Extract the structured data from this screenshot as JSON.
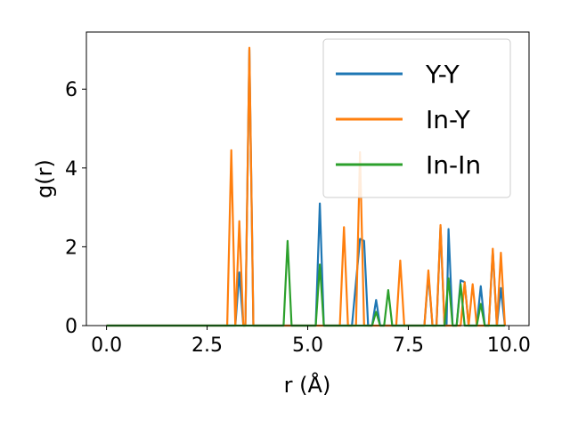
{
  "chart_data": {
    "type": "line",
    "title": "",
    "xlabel": "r (Å)",
    "ylabel": "g(r)",
    "xlim": [
      -0.5,
      10.5
    ],
    "ylim": [
      0,
      7.45
    ],
    "xticks": [
      0.0,
      2.5,
      5.0,
      7.5,
      10.0
    ],
    "xtick_labels": [
      "0.0",
      "2.5",
      "5.0",
      "7.5",
      "10.0"
    ],
    "yticks": [
      0,
      2,
      4,
      6
    ],
    "ytick_labels": [
      "0",
      "2",
      "4",
      "6"
    ],
    "grid": false,
    "legend_position": "top-right",
    "series": [
      {
        "name": "Y-Y",
        "color": "#1f77b4",
        "points": [
          [
            0,
            0
          ],
          [
            3.1,
            0
          ],
          [
            3.2,
            0
          ],
          [
            3.3,
            1.35
          ],
          [
            3.4,
            0
          ],
          [
            3.45,
            0
          ],
          [
            3.55,
            7.0
          ],
          [
            3.65,
            0
          ],
          [
            5.2,
            0
          ],
          [
            5.3,
            3.1
          ],
          [
            5.4,
            0
          ],
          [
            6.1,
            0
          ],
          [
            6.3,
            2.2
          ],
          [
            6.4,
            2.15
          ],
          [
            6.5,
            0
          ],
          [
            6.6,
            0
          ],
          [
            6.7,
            0.65
          ],
          [
            6.8,
            0
          ],
          [
            7.9,
            0
          ],
          [
            8.0,
            1.3
          ],
          [
            8.1,
            0
          ],
          [
            8.2,
            0
          ],
          [
            8.3,
            2.5
          ],
          [
            8.4,
            0
          ],
          [
            8.45,
            0
          ],
          [
            8.5,
            2.45
          ],
          [
            8.6,
            0
          ],
          [
            8.7,
            0
          ],
          [
            8.8,
            1.15
          ],
          [
            8.9,
            1.1
          ],
          [
            9.0,
            0
          ],
          [
            9.2,
            0
          ],
          [
            9.3,
            1.0
          ],
          [
            9.4,
            0
          ],
          [
            9.5,
            0
          ],
          [
            9.6,
            1.9
          ],
          [
            9.7,
            0
          ],
          [
            9.8,
            0.95
          ],
          [
            9.9,
            0
          ]
        ]
      },
      {
        "name": "In-Y",
        "color": "#ff7f0e",
        "points": [
          [
            0,
            0
          ],
          [
            3.0,
            0
          ],
          [
            3.1,
            4.45
          ],
          [
            3.2,
            0
          ],
          [
            3.3,
            2.65
          ],
          [
            3.4,
            0
          ],
          [
            3.45,
            0
          ],
          [
            3.55,
            7.05
          ],
          [
            3.65,
            0
          ],
          [
            5.8,
            0
          ],
          [
            5.9,
            2.5
          ],
          [
            6.0,
            0
          ],
          [
            6.2,
            0
          ],
          [
            6.3,
            4.4
          ],
          [
            6.4,
            0
          ],
          [
            7.2,
            0
          ],
          [
            7.3,
            1.65
          ],
          [
            7.4,
            0
          ],
          [
            7.9,
            0
          ],
          [
            8.0,
            1.4
          ],
          [
            8.1,
            0
          ],
          [
            8.2,
            0
          ],
          [
            8.3,
            2.55
          ],
          [
            8.4,
            0
          ],
          [
            8.8,
            0
          ],
          [
            8.9,
            1.1
          ],
          [
            9.0,
            0
          ],
          [
            9.1,
            1.05
          ],
          [
            9.2,
            0
          ],
          [
            9.5,
            0
          ],
          [
            9.6,
            1.95
          ],
          [
            9.7,
            0
          ],
          [
            9.8,
            1.85
          ],
          [
            9.9,
            0
          ]
        ]
      },
      {
        "name": "In-In",
        "color": "#2ca02c",
        "points": [
          [
            0,
            0
          ],
          [
            4.4,
            0
          ],
          [
            4.5,
            2.15
          ],
          [
            4.6,
            0
          ],
          [
            5.2,
            0
          ],
          [
            5.3,
            1.55
          ],
          [
            5.4,
            0
          ],
          [
            6.6,
            0
          ],
          [
            6.7,
            0.35
          ],
          [
            6.8,
            0
          ],
          [
            6.9,
            0
          ],
          [
            7.0,
            0.9
          ],
          [
            7.1,
            0
          ],
          [
            8.4,
            0
          ],
          [
            8.5,
            1.2
          ],
          [
            8.6,
            0
          ],
          [
            8.7,
            0
          ],
          [
            8.8,
            1.05
          ],
          [
            8.9,
            0
          ],
          [
            9.2,
            0
          ],
          [
            9.3,
            0.55
          ],
          [
            9.4,
            0
          ],
          [
            9.9,
            0
          ]
        ]
      }
    ]
  }
}
